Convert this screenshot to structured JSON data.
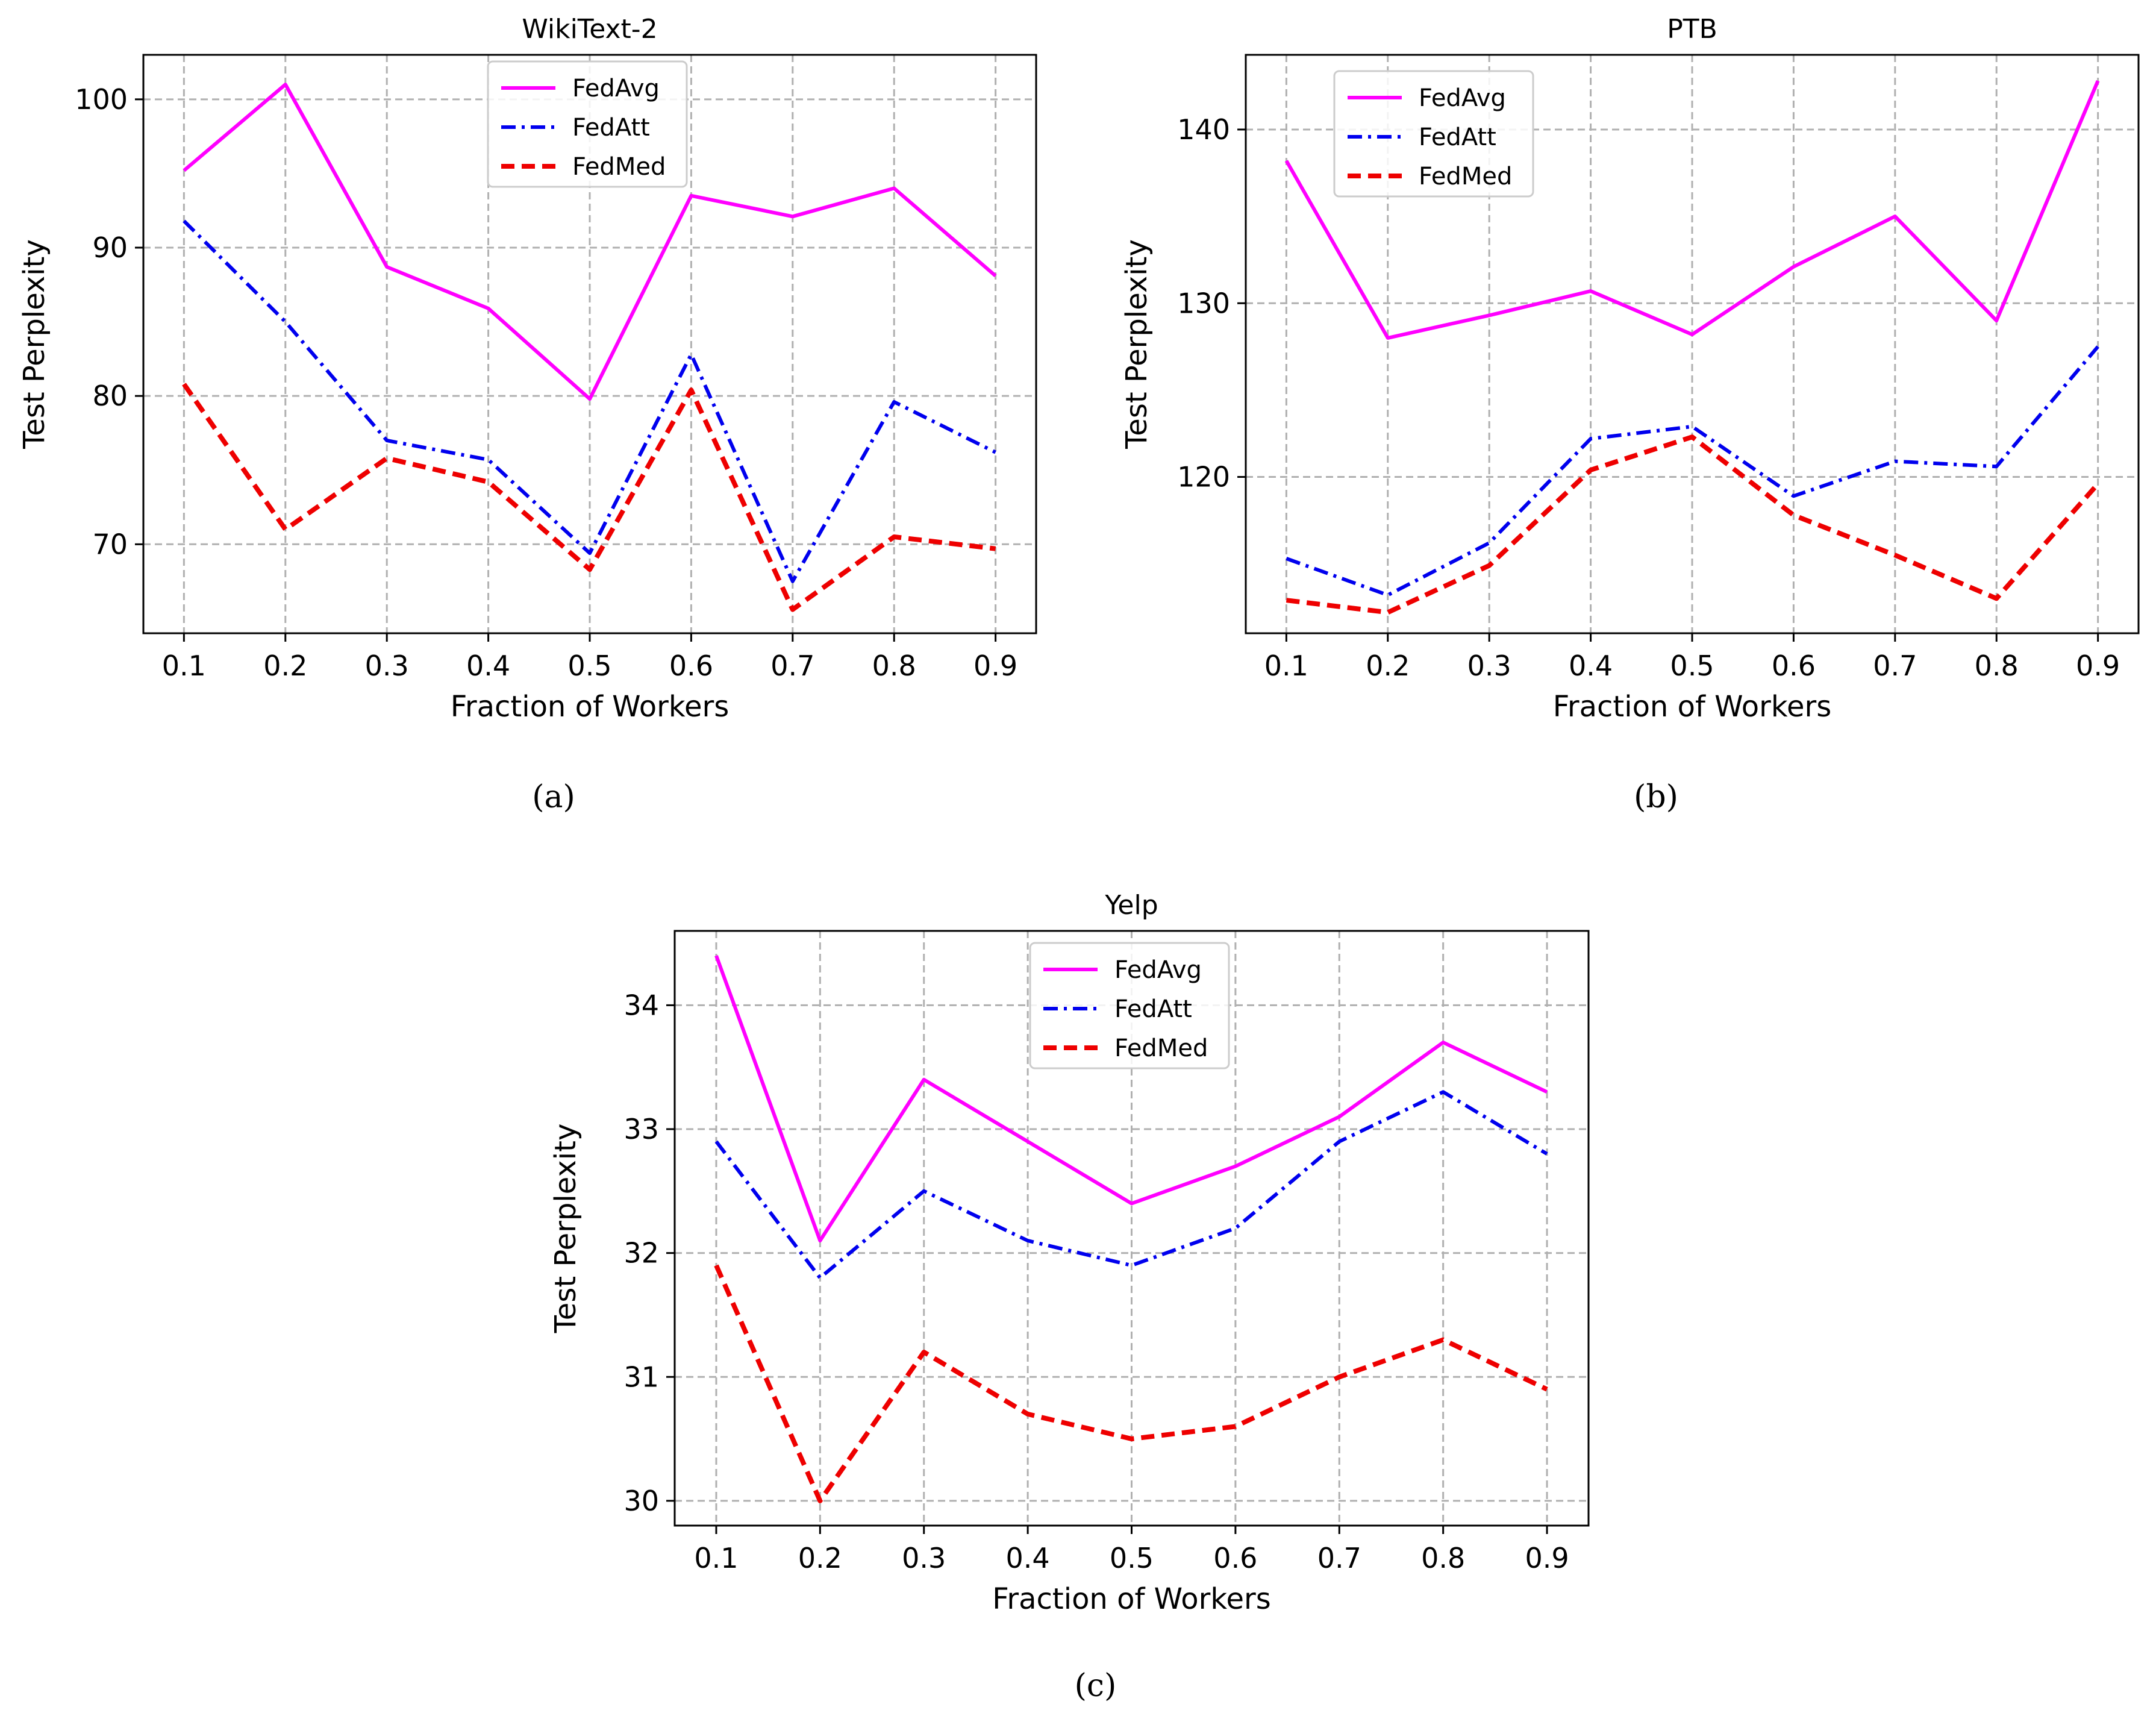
{
  "chart_data": [
    {
      "type": "line",
      "title": "WikiText-2",
      "caption": "(a)",
      "xlabel": "Fraction of Workers",
      "ylabel": "Test Perplexity",
      "x": [
        0.1,
        0.2,
        0.3,
        0.4,
        0.5,
        0.6,
        0.7,
        0.8,
        0.9
      ],
      "x_tick_labels": [
        "0.1",
        "0.2",
        "0.3",
        "0.4",
        "0.5",
        "0.6",
        "0.7",
        "0.8",
        "0.9"
      ],
      "xlim": [
        0.06,
        0.94
      ],
      "ylim": [
        64,
        103
      ],
      "y_ticks": [
        70,
        80,
        90,
        100
      ],
      "y_tick_labels": [
        "70",
        "80",
        "90",
        "100"
      ],
      "grid": true,
      "legend_position": "top-center",
      "series": [
        {
          "name": "FedAvg",
          "color": "#ff00ff",
          "style": "solid",
          "values": [
            95.2,
            101.0,
            88.7,
            85.9,
            79.8,
            93.5,
            92.1,
            94.0,
            88.1
          ]
        },
        {
          "name": "FedAtt",
          "color": "#0000ee",
          "style": "dashdot",
          "values": [
            91.8,
            85.0,
            77.0,
            75.7,
            69.4,
            82.8,
            67.5,
            79.6,
            76.2
          ]
        },
        {
          "name": "FedMed",
          "color": "#ee0000",
          "style": "dashed",
          "values": [
            80.8,
            71.0,
            75.8,
            74.2,
            68.3,
            80.4,
            65.6,
            70.5,
            69.7
          ]
        }
      ]
    },
    {
      "type": "line",
      "title": "PTB",
      "caption": "(b)",
      "xlabel": "Fraction of Workers",
      "ylabel": "Test Perplexity",
      "x": [
        0.1,
        0.2,
        0.3,
        0.4,
        0.5,
        0.6,
        0.7,
        0.8,
        0.9
      ],
      "x_tick_labels": [
        "0.1",
        "0.2",
        "0.3",
        "0.4",
        "0.5",
        "0.6",
        "0.7",
        "0.8",
        "0.9"
      ],
      "xlim": [
        0.06,
        0.94
      ],
      "ylim": [
        111,
        144.3
      ],
      "y_ticks": [
        120,
        130,
        140
      ],
      "y_tick_labels": [
        "120",
        "130",
        "140"
      ],
      "grid": true,
      "legend_position": "top-left",
      "series": [
        {
          "name": "FedAvg",
          "color": "#ff00ff",
          "style": "solid",
          "values": [
            138.2,
            128.0,
            129.3,
            130.7,
            128.2,
            132.1,
            135.0,
            129.0,
            142.8
          ]
        },
        {
          "name": "FedAtt",
          "color": "#0000ee",
          "style": "dashdot",
          "values": [
            115.3,
            113.2,
            116.2,
            122.2,
            122.9,
            118.9,
            120.9,
            120.6,
            127.5
          ]
        },
        {
          "name": "FedMed",
          "color": "#ee0000",
          "style": "dashed",
          "values": [
            112.9,
            112.2,
            114.9,
            120.4,
            122.3,
            117.8,
            115.5,
            113.0,
            119.6
          ]
        }
      ]
    },
    {
      "type": "line",
      "title": "Yelp",
      "caption": "(c)",
      "xlabel": "Fraction of Workers",
      "ylabel": "Test Perplexity",
      "x": [
        0.1,
        0.2,
        0.3,
        0.4,
        0.5,
        0.6,
        0.7,
        0.8,
        0.9
      ],
      "x_tick_labels": [
        "0.1",
        "0.2",
        "0.3",
        "0.4",
        "0.5",
        "0.6",
        "0.7",
        "0.8",
        "0.9"
      ],
      "xlim": [
        0.06,
        0.94
      ],
      "ylim": [
        29.8,
        34.6
      ],
      "y_ticks": [
        30,
        31,
        32,
        33,
        34
      ],
      "y_tick_labels": [
        "30",
        "31",
        "32",
        "33",
        "34"
      ],
      "grid": true,
      "legend_position": "top-center",
      "series": [
        {
          "name": "FedAvg",
          "color": "#ff00ff",
          "style": "solid",
          "values": [
            34.4,
            32.1,
            33.4,
            32.9,
            32.4,
            32.7,
            33.1,
            33.7,
            33.3
          ]
        },
        {
          "name": "FedAtt",
          "color": "#0000ee",
          "style": "dashdot",
          "values": [
            32.9,
            31.8,
            32.5,
            32.1,
            31.9,
            32.2,
            32.9,
            33.3,
            32.8
          ]
        },
        {
          "name": "FedMed",
          "color": "#ee0000",
          "style": "dashed",
          "values": [
            31.9,
            30.0,
            31.2,
            30.7,
            30.5,
            30.6,
            31.0,
            31.3,
            30.9
          ]
        }
      ]
    }
  ]
}
